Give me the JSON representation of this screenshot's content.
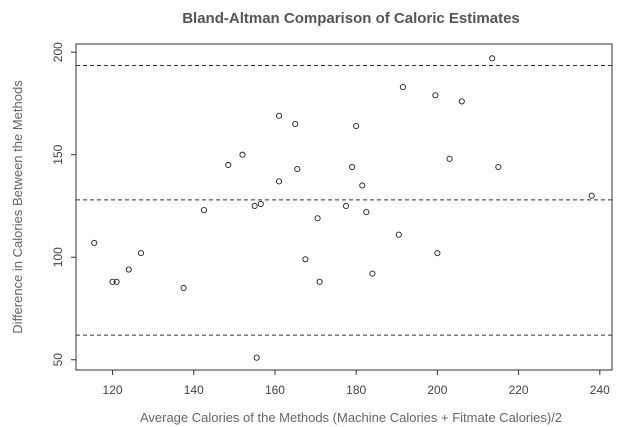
{
  "chart_data": {
    "type": "scatter",
    "title": "Bland-Altman Comparison of Caloric Estimates",
    "xlabel": "Average Calories of the Methods (Machine Calories + Fitmate Calories)/2",
    "ylabel": "Difference in Calories Between the Methods",
    "xlim": [
      111,
      243
    ],
    "ylim": [
      45,
      204
    ],
    "xticks": [
      120,
      140,
      160,
      180,
      200,
      220,
      240
    ],
    "yticks": [
      50,
      100,
      150,
      200
    ],
    "xtick_labels": [
      "120",
      "140",
      "160",
      "180",
      "200",
      "220",
      "240"
    ],
    "ytick_labels": [
      "50",
      "100",
      "150",
      "200"
    ],
    "reference_lines": [
      193.5,
      128,
      62
    ],
    "grid": false,
    "marker": "open-circle",
    "points": [
      {
        "x": 115.5,
        "y": 107
      },
      {
        "x": 120,
        "y": 88
      },
      {
        "x": 121,
        "y": 88
      },
      {
        "x": 124,
        "y": 94
      },
      {
        "x": 127,
        "y": 102
      },
      {
        "x": 137.5,
        "y": 85
      },
      {
        "x": 142.5,
        "y": 123
      },
      {
        "x": 148.5,
        "y": 145
      },
      {
        "x": 152,
        "y": 150
      },
      {
        "x": 155,
        "y": 125
      },
      {
        "x": 155.5,
        "y": 51
      },
      {
        "x": 156.5,
        "y": 126
      },
      {
        "x": 161,
        "y": 169
      },
      {
        "x": 161,
        "y": 137
      },
      {
        "x": 165,
        "y": 165
      },
      {
        "x": 165.5,
        "y": 143
      },
      {
        "x": 167.5,
        "y": 99
      },
      {
        "x": 170.5,
        "y": 119
      },
      {
        "x": 171,
        "y": 88
      },
      {
        "x": 177.5,
        "y": 125
      },
      {
        "x": 179,
        "y": 144
      },
      {
        "x": 180,
        "y": 164
      },
      {
        "x": 181.5,
        "y": 135
      },
      {
        "x": 182.5,
        "y": 122
      },
      {
        "x": 184,
        "y": 92
      },
      {
        "x": 190.5,
        "y": 111
      },
      {
        "x": 191.5,
        "y": 183
      },
      {
        "x": 199.5,
        "y": 179
      },
      {
        "x": 200,
        "y": 102
      },
      {
        "x": 203,
        "y": 148
      },
      {
        "x": 206,
        "y": 176
      },
      {
        "x": 213.5,
        "y": 197
      },
      {
        "x": 215,
        "y": 144
      },
      {
        "x": 238,
        "y": 130
      }
    ]
  }
}
